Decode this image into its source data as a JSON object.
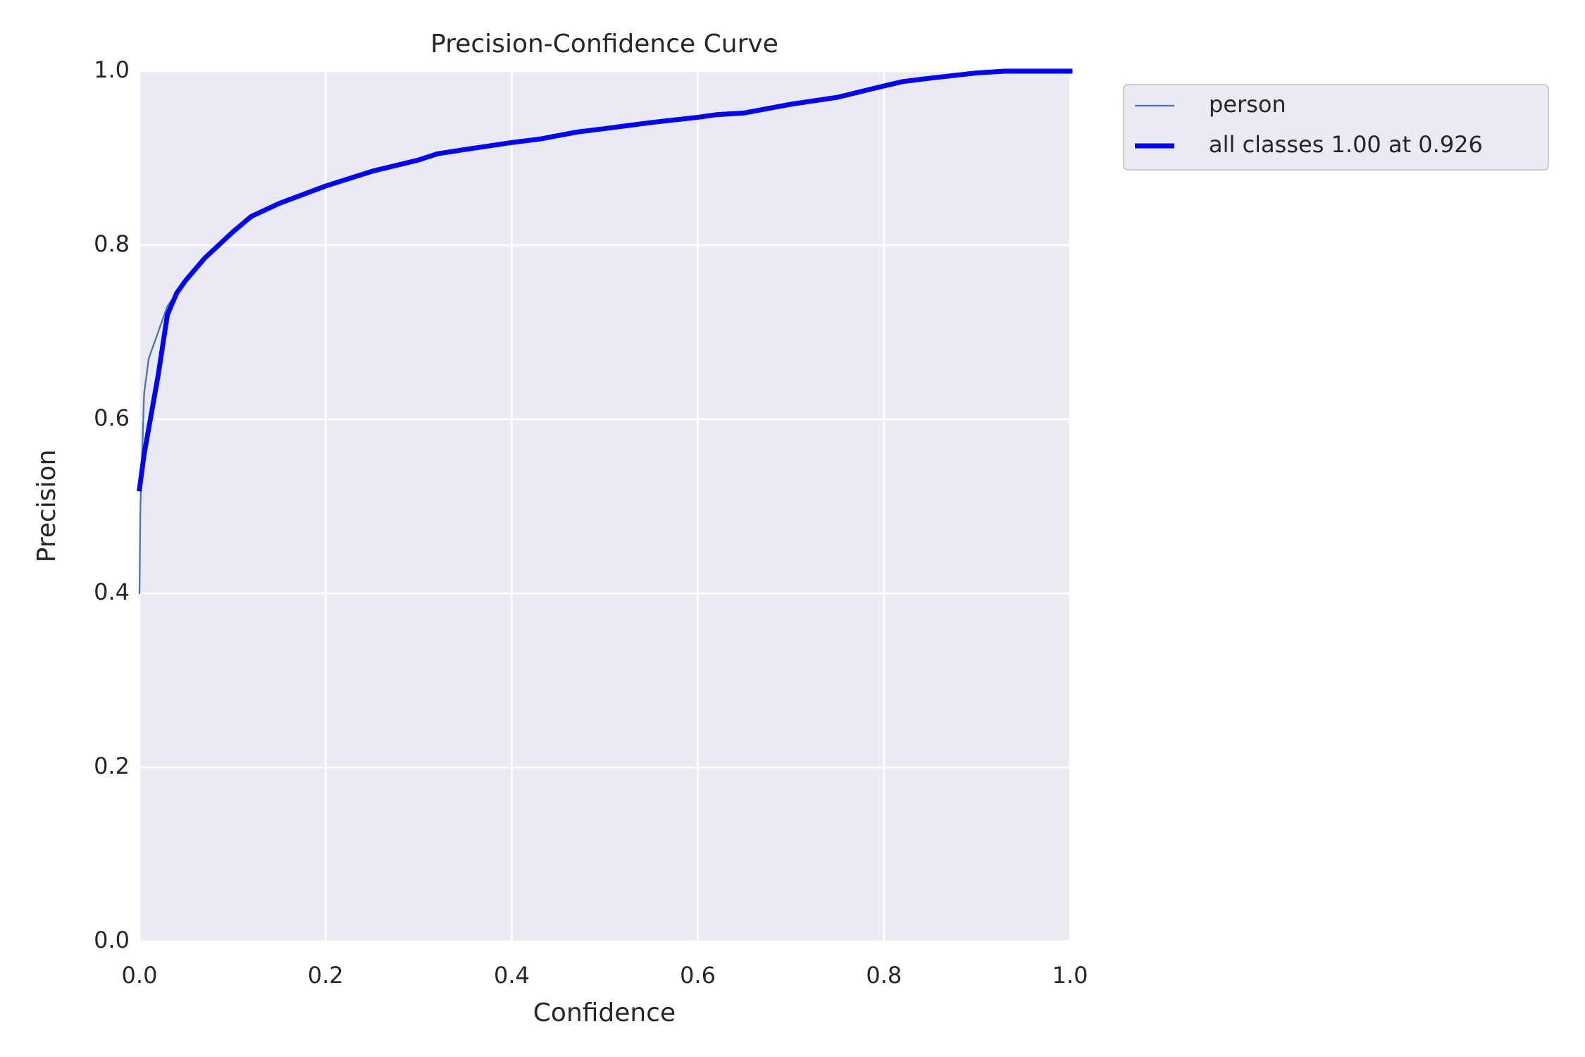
{
  "chart_data": {
    "type": "line",
    "title": "Precision-Confidence Curve",
    "x_label": "Confidence",
    "y_label": "Precision",
    "xlim": [
      0,
      1
    ],
    "ylim": [
      0,
      1
    ],
    "xticks": [
      {
        "value": 0,
        "label": "0.0"
      },
      0.2,
      0.4,
      0.6,
      0.8,
      {
        "value": 1,
        "label": "1.0"
      }
    ],
    "yticks": [
      {
        "value": 0,
        "label": "0.0"
      },
      0.2,
      0.4,
      0.6,
      0.8,
      {
        "value": 1,
        "label": "1.0"
      }
    ],
    "grid": true,
    "legend": "outside upper right",
    "series": [
      {
        "name": "person",
        "color": "#4c72b0",
        "width": 1,
        "x": [
          0,
          0.001,
          0.005,
          0.01,
          0.02,
          0.03,
          0.04,
          0.05,
          0.07,
          0.1,
          0.12,
          0.15,
          0.2,
          0.25,
          0.3,
          0.32,
          0.35,
          0.4,
          0.43,
          0.47,
          0.5,
          0.55,
          0.6,
          0.62,
          0.65,
          0.7,
          0.75,
          0.8,
          0.82,
          0.85,
          0.9,
          0.93,
          1.0
        ],
        "values": [
          0.4,
          0.5,
          0.63,
          0.67,
          0.7,
          0.73,
          0.745,
          0.76,
          0.785,
          0.815,
          0.833,
          0.848,
          0.868,
          0.885,
          0.898,
          0.905,
          0.91,
          0.918,
          0.922,
          0.93,
          0.934,
          0.941,
          0.947,
          0.95,
          0.952,
          0.962,
          0.97,
          0.983,
          0.988,
          0.992,
          0.998,
          1.0,
          1.0
        ]
      },
      {
        "name": "all classes 1.00 at 0.926",
        "color": "#0000ff",
        "width": 3,
        "x": [
          0,
          0.005,
          0.01,
          0.02,
          0.03,
          0.04,
          0.05,
          0.07,
          0.1,
          0.12,
          0.15,
          0.2,
          0.25,
          0.3,
          0.32,
          0.35,
          0.4,
          0.43,
          0.47,
          0.5,
          0.55,
          0.6,
          0.62,
          0.65,
          0.7,
          0.75,
          0.8,
          0.82,
          0.85,
          0.9,
          0.93,
          1.0
        ],
        "values": [
          0.52,
          0.56,
          0.59,
          0.65,
          0.72,
          0.745,
          0.76,
          0.785,
          0.815,
          0.833,
          0.848,
          0.868,
          0.885,
          0.898,
          0.905,
          0.91,
          0.918,
          0.922,
          0.93,
          0.934,
          0.941,
          0.947,
          0.95,
          0.952,
          0.962,
          0.97,
          0.983,
          0.988,
          0.992,
          0.998,
          1.0,
          1.0
        ]
      }
    ]
  }
}
